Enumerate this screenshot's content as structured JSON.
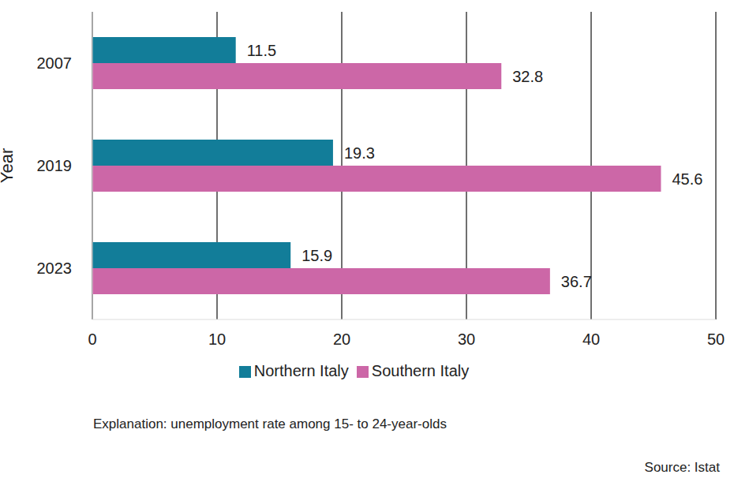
{
  "chart_data": {
    "type": "bar",
    "orientation": "horizontal",
    "y_label": "Year",
    "categories": [
      "2007",
      "2019",
      "2023"
    ],
    "series": [
      {
        "name": "Northern Italy",
        "color": "#127d99",
        "values": [
          11.5,
          19.3,
          15.9
        ]
      },
      {
        "name": "Southern Italy",
        "color": "#cc67a7",
        "values": [
          32.8,
          45.6,
          36.7
        ]
      }
    ],
    "xlim": [
      0,
      50
    ],
    "xticks": [
      0,
      10,
      20,
      30,
      40,
      50
    ],
    "grid": true,
    "legend": "bottom",
    "data_labels": true,
    "caption": "Explanation: unemployment rate among 15- to 24-year-olds",
    "source": "Source: Istat"
  }
}
